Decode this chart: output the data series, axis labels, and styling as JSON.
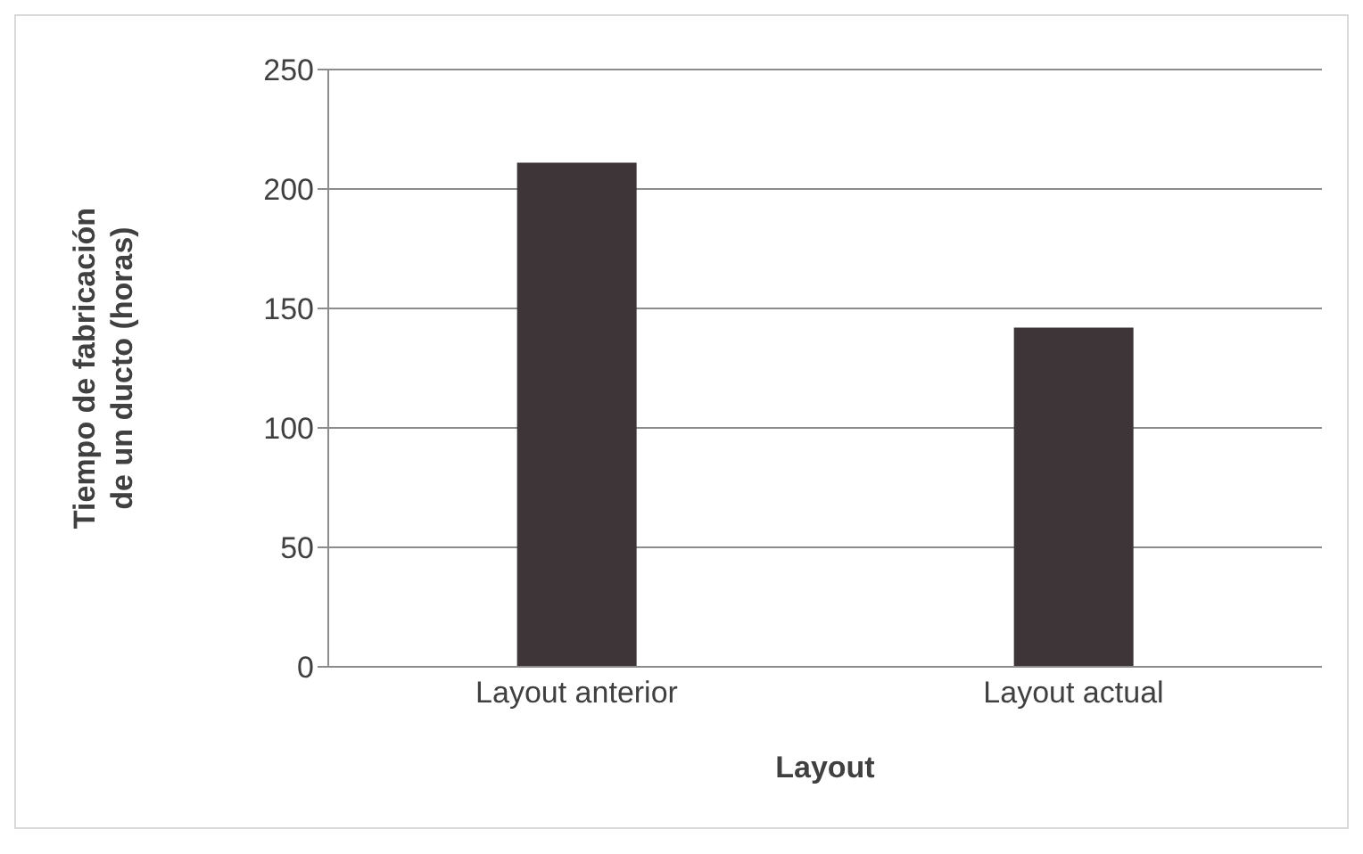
{
  "chart_data": {
    "type": "bar",
    "xlabel": "Layout",
    "ylabel": "Tiempo de fabricación de un ducto (horas)",
    "categories": [
      "Layout anterior",
      "Layout actual"
    ],
    "values": [
      211,
      142
    ],
    "color": "#3d3537",
    "ylim": [
      0,
      250
    ],
    "yticks": [
      0,
      50,
      100,
      150,
      200,
      250
    ],
    "grid": "y"
  }
}
